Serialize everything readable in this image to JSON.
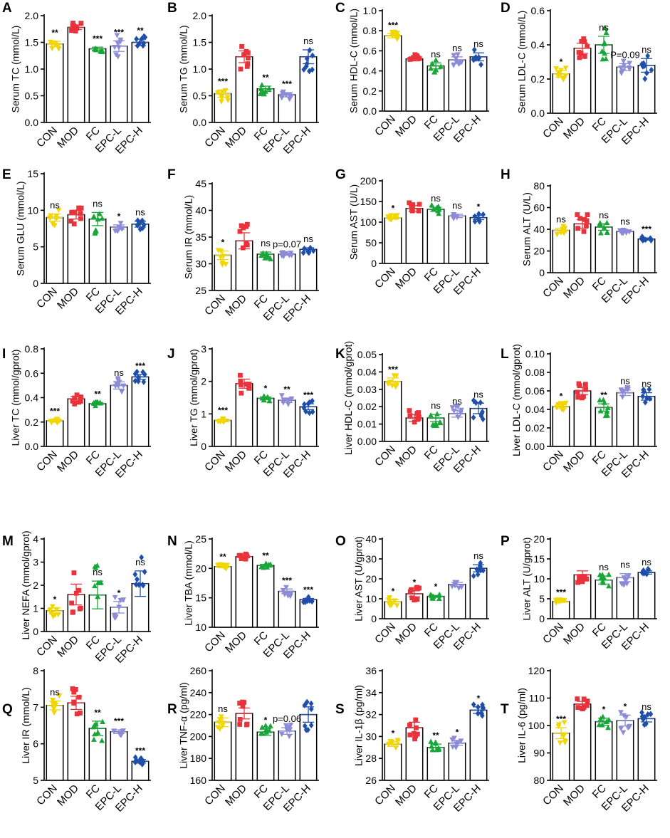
{
  "figure": {
    "groups": [
      "CON",
      "MOD",
      "FC",
      "EPC-L",
      "EPC-H"
    ],
    "colors": {
      "CON": "#f2d600",
      "MOD": "#e8323c",
      "FC": "#19a638",
      "EPC-L": "#8c8cd6",
      "EPC-H": "#1f4fa8"
    },
    "markers": {
      "CON": "triangle-down",
      "MOD": "square",
      "FC": "triangle-up",
      "EPC-L": "triangle-down",
      "EPC-H": "diamond"
    }
  },
  "chart_data": [
    {
      "panel": "A",
      "type": "bar",
      "ylabel": "Serum TC (mmol/L)",
      "ylim": [
        0,
        2.0
      ],
      "ticks": [
        "0.0",
        "0.5",
        "1.0",
        "1.5",
        "2.0"
      ],
      "categories": [
        "CON",
        "MOD",
        "FC",
        "EPC-L",
        "EPC-H"
      ],
      "values": [
        1.47,
        1.78,
        1.38,
        1.43,
        1.5
      ],
      "sem": [
        0.05,
        0.04,
        0.03,
        0.1,
        0.06
      ],
      "significance": [
        "**",
        "",
        "***",
        "***",
        "**"
      ]
    },
    {
      "panel": "B",
      "type": "bar",
      "ylabel": "Serum TG (mmol/L)",
      "ylim": [
        0,
        2.0
      ],
      "ticks": [
        "0.0",
        "0.5",
        "1.0",
        "1.5",
        "2.0"
      ],
      "categories": [
        "CON",
        "MOD",
        "FC",
        "EPC-L",
        "EPC-H"
      ],
      "values": [
        0.54,
        1.23,
        0.63,
        0.52,
        1.23
      ],
      "sem": [
        0.07,
        0.11,
        0.05,
        0.04,
        0.13
      ],
      "significance": [
        "***",
        "",
        "**",
        "***",
        "ns"
      ]
    },
    {
      "panel": "C",
      "type": "bar",
      "ylabel": "Serum HDL-C (mmol/L)",
      "ylim": [
        0,
        1.0
      ],
      "ticks": [
        "0.0",
        "0.2",
        "0.4",
        "0.6",
        "0.8",
        "1.0"
      ],
      "categories": [
        "CON",
        "MOD",
        "FC",
        "EPC-L",
        "EPC-H"
      ],
      "values": [
        0.75,
        0.52,
        0.45,
        0.51,
        0.54
      ],
      "sem": [
        0.02,
        0.02,
        0.03,
        0.03,
        0.04
      ],
      "significance": [
        "***",
        "",
        "ns",
        "ns",
        "ns"
      ]
    },
    {
      "panel": "D",
      "type": "bar",
      "ylabel": "Serum LDL-C (mmol/L)",
      "ylim": [
        0,
        0.6
      ],
      "ticks": [
        "0.0",
        "0.2",
        "0.4",
        "0.6"
      ],
      "categories": [
        "CON",
        "MOD",
        "FC",
        "EPC-L",
        "EPC-H"
      ],
      "values": [
        0.23,
        0.38,
        0.4,
        0.27,
        0.28
      ],
      "sem": [
        0.02,
        0.03,
        0.05,
        0.02,
        0.04
      ],
      "significance": [
        "*",
        "",
        "ns",
        "",
        "ns"
      ],
      "annotations": [
        "P=0.09"
      ]
    },
    {
      "panel": "E",
      "type": "bar",
      "ylabel": "Serum GLU (mmol/L)",
      "ylim": [
        0,
        15
      ],
      "ticks": [
        "0",
        "5",
        "10",
        "15"
      ],
      "categories": [
        "CON",
        "MOD",
        "FC",
        "EPC-L",
        "EPC-H"
      ],
      "values": [
        9.0,
        9.4,
        8.8,
        7.7,
        8.1
      ],
      "sem": [
        0.5,
        0.6,
        0.9,
        0.3,
        0.4
      ],
      "significance": [
        "ns",
        "",
        "ns",
        "*",
        "ns"
      ]
    },
    {
      "panel": "F",
      "type": "bar",
      "ylabel": "Serum IR (mmol/L)",
      "ylim": [
        25,
        45
      ],
      "ticks": [
        "25",
        "30",
        "35",
        "40",
        "45"
      ],
      "categories": [
        "CON",
        "MOD",
        "FC",
        "EPC-L",
        "EPC-H"
      ],
      "values": [
        31.6,
        34.3,
        31.8,
        31.8,
        32.7
      ],
      "sem": [
        0.8,
        1.5,
        0.4,
        0.2,
        0.3
      ],
      "significance": [
        "*",
        "",
        "ns",
        "",
        "ns"
      ],
      "annotations": [
        "p=0.07"
      ]
    },
    {
      "panel": "G",
      "type": "bar",
      "ylabel": "Serum AST (U/L)",
      "ylim": [
        0,
        200
      ],
      "ticks": [
        "0",
        "50",
        "100",
        "150",
        "200"
      ],
      "categories": [
        "CON",
        "MOD",
        "FC",
        "EPC-L",
        "EPC-H"
      ],
      "values": [
        110,
        133,
        131,
        115,
        111
      ],
      "sem": [
        3,
        7,
        5,
        4,
        5
      ],
      "significance": [
        "*",
        "",
        "ns",
        "ns",
        "*"
      ]
    },
    {
      "panel": "H",
      "type": "bar",
      "ylabel": "Serum ALT (U/L)",
      "ylim": [
        0,
        80
      ],
      "ticks": [
        "0",
        "20",
        "40",
        "60",
        "80"
      ],
      "categories": [
        "CON",
        "MOD",
        "FC",
        "EPC-L",
        "EPC-H"
      ],
      "values": [
        39,
        45,
        42,
        38,
        31
      ],
      "sem": [
        2,
        4,
        3,
        1,
        1
      ],
      "significance": [
        "ns",
        "",
        "ns",
        "ns",
        "***"
      ]
    },
    {
      "panel": "I",
      "type": "bar",
      "ylabel": "Liver TC (mmol/gprot)",
      "ylim": [
        0,
        0.8
      ],
      "ticks": [
        "0.0",
        "0.2",
        "0.4",
        "0.6",
        "0.8"
      ],
      "categories": [
        "CON",
        "MOD",
        "FC",
        "EPC-L",
        "EPC-H"
      ],
      "values": [
        0.21,
        0.39,
        0.35,
        0.5,
        0.57
      ],
      "sem": [
        0.01,
        0.02,
        0.01,
        0.03,
        0.02
      ],
      "significance": [
        "***",
        "",
        "**",
        "ns",
        "***"
      ]
    },
    {
      "panel": "J",
      "type": "bar",
      "ylabel": "Liver TG (mmol/gprot)",
      "ylim": [
        0,
        3
      ],
      "ticks": [
        "0",
        "1",
        "2",
        "3"
      ],
      "categories": [
        "CON",
        "MOD",
        "FC",
        "EPC-L",
        "EPC-H"
      ],
      "values": [
        0.8,
        1.93,
        1.48,
        1.42,
        1.22
      ],
      "sem": [
        0.04,
        0.14,
        0.04,
        0.07,
        0.09
      ],
      "significance": [
        "***",
        "",
        "*",
        "**",
        "***"
      ]
    },
    {
      "panel": "K",
      "type": "bar",
      "ylabel": "Liver HDL-C (mmol/gprot)",
      "ylim": [
        0,
        0.05
      ],
      "ticks": [
        "0.00",
        "0.01",
        "0.02",
        "0.03",
        "0.04",
        "0.05"
      ],
      "categories": [
        "CON",
        "MOD",
        "FC",
        "EPC-L",
        "EPC-H"
      ],
      "values": [
        0.0345,
        0.0135,
        0.0135,
        0.016,
        0.019
      ],
      "sem": [
        0.002,
        0.002,
        0.002,
        0.002,
        0.003
      ],
      "significance": [
        "***",
        "",
        "ns",
        "ns",
        "ns"
      ]
    },
    {
      "panel": "L",
      "type": "bar",
      "ylabel": "Liver LDL-C (mmol/gprot)",
      "ylim": [
        0,
        0.1
      ],
      "ticks": [
        "0.00",
        "0.02",
        "0.04",
        "0.06",
        "0.08",
        "0.10"
      ],
      "categories": [
        "CON",
        "MOD",
        "FC",
        "EPC-L",
        "EPC-H"
      ],
      "values": [
        0.043,
        0.06,
        0.042,
        0.058,
        0.054
      ],
      "sem": [
        0.002,
        0.004,
        0.004,
        0.003,
        0.004
      ],
      "significance": [
        "*",
        "",
        "**",
        "ns",
        "ns"
      ]
    },
    {
      "panel": "M",
      "type": "bar",
      "ylabel": "Liver NEFA (mmol/gprot)",
      "ylim": [
        0,
        4
      ],
      "ticks": [
        "0",
        "1",
        "2",
        "3",
        "4"
      ],
      "categories": [
        "CON",
        "MOD",
        "FC",
        "EPC-L",
        "EPC-H"
      ],
      "values": [
        0.9,
        1.6,
        1.58,
        1.05,
        2.07
      ],
      "sem": [
        0.12,
        0.45,
        0.6,
        0.25,
        0.55
      ],
      "significance": [
        "*",
        "",
        "ns",
        "*",
        "ns"
      ]
    },
    {
      "panel": "N",
      "type": "bar",
      "ylabel": "Liver TBA (mmol/L)",
      "ylim": [
        10,
        25
      ],
      "ticks": [
        "10",
        "15",
        "20",
        "25"
      ],
      "categories": [
        "CON",
        "MOD",
        "FC",
        "EPC-L",
        "EPC-H"
      ],
      "values": [
        20.3,
        22.0,
        20.5,
        16.1,
        14.7
      ],
      "sem": [
        0.2,
        0.2,
        0.2,
        0.4,
        0.2
      ],
      "significance": [
        "**",
        "",
        "**",
        "***",
        "***"
      ]
    },
    {
      "panel": "O",
      "type": "bar",
      "ylabel": "Liver AST (U/gprot)",
      "ylim": [
        0,
        40
      ],
      "ticks": [
        "0",
        "10",
        "20",
        "30",
        "40"
      ],
      "categories": [
        "CON",
        "MOD",
        "FC",
        "EPC-L",
        "EPC-H"
      ],
      "values": [
        8.5,
        12.5,
        11.2,
        17.2,
        25.3
      ],
      "sem": [
        1.0,
        1.5,
        0.5,
        1.0,
        1.8
      ],
      "significance": [
        "*",
        "*",
        "*",
        "",
        "ns"
      ]
    },
    {
      "panel": "P",
      "type": "bar",
      "ylabel": "Liver ALT (U/gprot)",
      "ylim": [
        0,
        20
      ],
      "ticks": [
        "0",
        "5",
        "10",
        "15",
        "20"
      ],
      "categories": [
        "CON",
        "MOD",
        "FC",
        "EPC-L",
        "EPC-H"
      ],
      "values": [
        4.3,
        11.0,
        9.7,
        10.3,
        11.6
      ],
      "sem": [
        0.2,
        1.0,
        1.0,
        1.0,
        0.4
      ],
      "significance": [
        "***",
        "",
        "ns",
        "ns",
        "ns"
      ]
    },
    {
      "panel": "Q",
      "type": "bar",
      "ylabel": "Liver IR (mmol/L)",
      "ylim": [
        5,
        8
      ],
      "ticks": [
        "5",
        "6",
        "7",
        "8"
      ],
      "categories": [
        "CON",
        "MOD",
        "FC",
        "EPC-L",
        "EPC-H"
      ],
      "values": [
        7.05,
        7.12,
        6.42,
        6.33,
        5.52
      ],
      "sem": [
        0.12,
        0.18,
        0.2,
        0.05,
        0.05
      ],
      "significance": [
        "ns",
        "",
        "**",
        "***",
        "***"
      ]
    },
    {
      "panel": "R",
      "type": "bar",
      "ylabel": "Liver TNF-α (pg/ml)",
      "ylim": [
        160,
        260
      ],
      "ticks": [
        "160",
        "180",
        "200",
        "220",
        "240",
        "260"
      ],
      "categories": [
        "CON",
        "MOD",
        "FC",
        "EPC-L",
        "EPC-H"
      ],
      "values": [
        213,
        221,
        204,
        205,
        220
      ],
      "sem": [
        4,
        5,
        3,
        3,
        7
      ],
      "significance": [
        "ns",
        "",
        "*",
        "",
        ""
      ],
      "annotations": [
        "p=0.06"
      ]
    },
    {
      "panel": "S",
      "type": "bar",
      "ylabel": "Liver IL-1β (pg/ml)",
      "ylim": [
        26,
        36
      ],
      "ticks": [
        "26",
        "28",
        "30",
        "32",
        "34",
        "36"
      ],
      "categories": [
        "CON",
        "MOD",
        "FC",
        "EPC-L",
        "EPC-H"
      ],
      "values": [
        29.3,
        30.8,
        29.0,
        29.4,
        32.4
      ],
      "sem": [
        0.2,
        0.5,
        0.3,
        0.2,
        0.3
      ],
      "significance": [
        "*",
        "",
        "**",
        "*",
        "*"
      ]
    },
    {
      "panel": "T",
      "type": "bar",
      "ylabel": "Liver IL-6 (pg/ml)",
      "ylim": [
        80,
        120
      ],
      "ticks": [
        "80",
        "90",
        "100",
        "110",
        "120"
      ],
      "categories": [
        "CON",
        "MOD",
        "FC",
        "EPC-L",
        "EPC-H"
      ],
      "values": [
        97.2,
        107.8,
        101.4,
        101.8,
        102.5
      ],
      "sem": [
        2.0,
        1.0,
        1.3,
        2.0,
        1.2
      ],
      "significance": [
        "***",
        "",
        "*",
        "*",
        "ns"
      ]
    }
  ]
}
